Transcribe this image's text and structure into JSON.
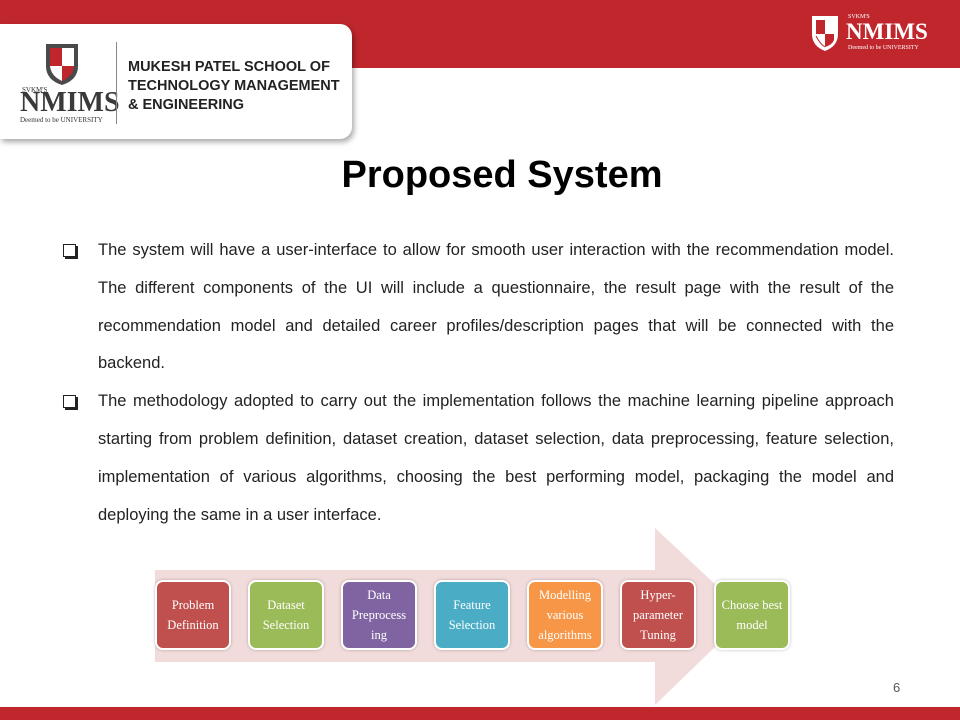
{
  "logo": {
    "svkm": "SVKM'S",
    "name": "NMIMS",
    "tagline": "Deemed to be UNIVERSITY"
  },
  "school": {
    "line1": "MUKESH PATEL SCHOOL OF",
    "line2": "TECHNOLOGY MANAGEMENT",
    "line3": "& ENGINEERING"
  },
  "title": "Proposed System",
  "bullets": [
    "The system will have a user-interface to allow for smooth user interaction with the recommendation model. The different components of the UI will include a questionnaire, the result page with the result of the recommendation model and detailed career profiles/description pages that will be connected with the backend.",
    "The methodology adopted to carry out the implementation follows the machine learning pipeline approach starting from problem definition, dataset creation, dataset selection, data preprocessing, feature selection, implementation of various algorithms, choosing the best performing model, packaging the model and deploying the same in a user interface."
  ],
  "steps": [
    {
      "label": "Problem Definition",
      "color": "#c0504d"
    },
    {
      "label": "Dataset Selection",
      "color": "#9bbb59"
    },
    {
      "label": "Data Preprocess ing",
      "color": "#8064a2"
    },
    {
      "label": "Feature Selection",
      "color": "#4bacc6"
    },
    {
      "label": "Modelling various algorithms",
      "color": "#f79646"
    },
    {
      "label": "Hyper- parameter Tuning",
      "color": "#c0504d"
    },
    {
      "label": "Choose best model",
      "color": "#9bbb59"
    }
  ],
  "colors": {
    "brand_red": "#c0272d",
    "arrow_fill": "#f2dcdb"
  },
  "page_number": "6"
}
